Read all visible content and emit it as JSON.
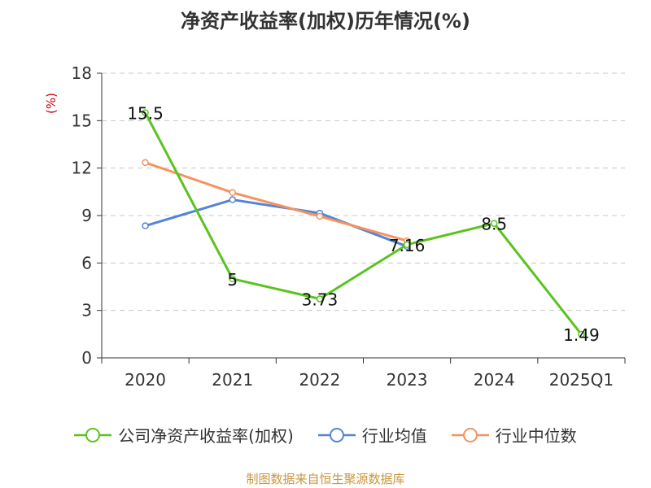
{
  "chart_data": {
    "type": "line",
    "title": "净资产收益率(加权)历年情况(%)",
    "ylabel": "(%)",
    "categories": [
      "2020",
      "2021",
      "2022",
      "2023",
      "2024",
      "2025Q1"
    ],
    "ylim": [
      0,
      18
    ],
    "yticks": [
      0,
      3,
      6,
      9,
      12,
      15,
      18
    ],
    "grid": true,
    "legend_position": "bottom",
    "series": [
      {
        "name": "公司净资产收益率(加权)",
        "color": "#5ac31e",
        "values": [
          15.5,
          5,
          3.73,
          7.16,
          8.5,
          1.49
        ],
        "labels": [
          "15.5",
          "5",
          "3.73",
          "7.16",
          "8.5",
          "1.49"
        ]
      },
      {
        "name": "行业均值",
        "color": "#5584d6",
        "values": [
          8.35,
          10.0,
          9.15,
          7.05,
          null,
          null
        ]
      },
      {
        "name": "行业中位数",
        "color": "#f5925f",
        "values": [
          12.35,
          10.45,
          8.95,
          7.4,
          null,
          null
        ]
      }
    ]
  },
  "source": "制图数据来自恒生聚源数据库"
}
